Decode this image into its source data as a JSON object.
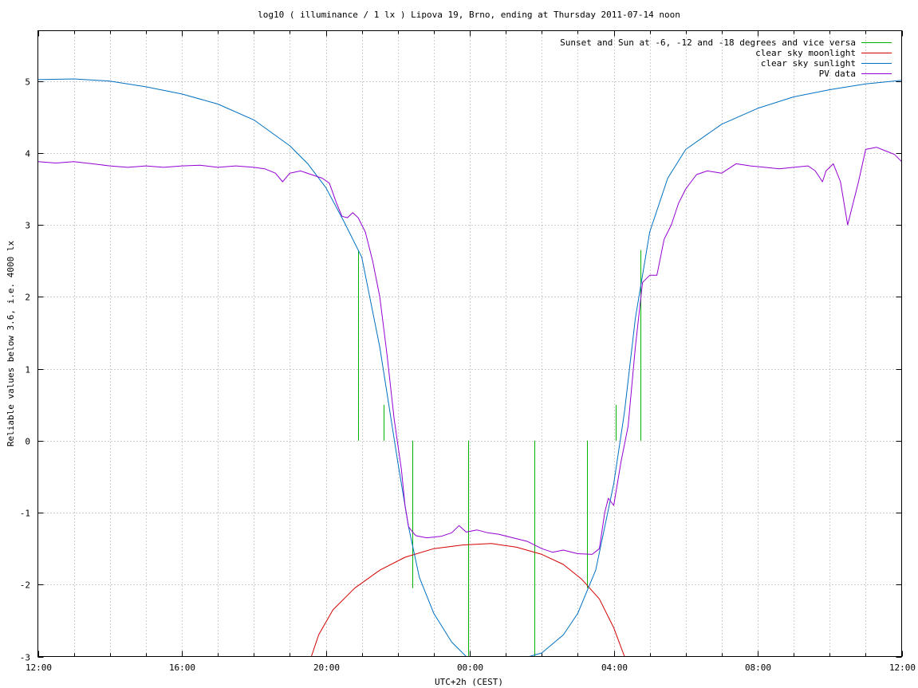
{
  "chart_data": {
    "type": "line",
    "title": "log10 ( illuminance / 1 lx ) Lipova 19, Brno, ending at Thursday 2011-07-14 noon",
    "xlabel": "UTC+2h (CEST)",
    "ylabel": "Reliable values below 3.6, i.e. 4000 lx",
    "x_unit": "hours since 12:00 (local) on the preceding day",
    "xlim": [
      0,
      24
    ],
    "ylim": [
      -3,
      5.7
    ],
    "x_ticks": [
      {
        "value": 0,
        "label": "12:00"
      },
      {
        "value": 4,
        "label": "16:00"
      },
      {
        "value": 8,
        "label": "20:00"
      },
      {
        "value": 12,
        "label": "00:00"
      },
      {
        "value": 16,
        "label": "04:00"
      },
      {
        "value": 20,
        "label": "08:00"
      },
      {
        "value": 24,
        "label": "12:00"
      }
    ],
    "y_ticks": [
      {
        "value": -3,
        "label": "-3"
      },
      {
        "value": -2,
        "label": "-2"
      },
      {
        "value": -1,
        "label": "-1"
      },
      {
        "value": 0,
        "label": "0"
      },
      {
        "value": 1,
        "label": "1"
      },
      {
        "value": 2,
        "label": "2"
      },
      {
        "value": 3,
        "label": "3"
      },
      {
        "value": 4,
        "label": "4"
      },
      {
        "value": 5,
        "label": "5"
      }
    ],
    "grid": true,
    "x_minor_grid_step": 1,
    "legend_position": "top-right",
    "series": [
      {
        "name": "Sunset and Sun at -6, -12 and -18 degrees and vice versa",
        "color": "#00b400",
        "style": "impulses",
        "base": 0,
        "points": [
          [
            8.9,
            2.65
          ],
          [
            9.6,
            0.5
          ],
          [
            10.4,
            -2.05
          ],
          [
            11.95,
            -3.0
          ],
          [
            13.8,
            -3.0
          ],
          [
            15.25,
            -2.05
          ],
          [
            16.05,
            0.5
          ],
          [
            16.75,
            2.65
          ]
        ]
      },
      {
        "name": "clear sky moonlight",
        "color": "#d40000",
        "style": "line",
        "points": [
          [
            7.6,
            -3.0
          ],
          [
            7.8,
            -2.7
          ],
          [
            8.2,
            -2.35
          ],
          [
            8.8,
            -2.05
          ],
          [
            9.5,
            -1.8
          ],
          [
            10.2,
            -1.62
          ],
          [
            11.0,
            -1.5
          ],
          [
            11.8,
            -1.45
          ],
          [
            12.6,
            -1.43
          ],
          [
            13.3,
            -1.48
          ],
          [
            14.0,
            -1.58
          ],
          [
            14.6,
            -1.72
          ],
          [
            15.1,
            -1.92
          ],
          [
            15.6,
            -2.2
          ],
          [
            16.0,
            -2.6
          ],
          [
            16.3,
            -3.0
          ]
        ]
      },
      {
        "name": "clear sky sunlight",
        "color": "#0070c0",
        "style": "line",
        "points": [
          [
            0,
            5.02
          ],
          [
            1,
            5.03
          ],
          [
            2,
            5.0
          ],
          [
            3,
            4.92
          ],
          [
            4,
            4.82
          ],
          [
            5,
            4.68
          ],
          [
            6,
            4.46
          ],
          [
            7,
            4.1
          ],
          [
            7.5,
            3.85
          ],
          [
            8,
            3.52
          ],
          [
            8.5,
            3.05
          ],
          [
            9,
            2.55
          ],
          [
            9.5,
            1.3
          ],
          [
            10,
            -0.3
          ],
          [
            10.3,
            -1.2
          ],
          [
            10.6,
            -1.9
          ],
          [
            11,
            -2.4
          ],
          [
            11.5,
            -2.8
          ],
          [
            12,
            -3.05
          ],
          [
            13.3,
            -3.05
          ],
          [
            14,
            -2.95
          ],
          [
            14.6,
            -2.7
          ],
          [
            15,
            -2.4
          ],
          [
            15.5,
            -1.8
          ],
          [
            16,
            -0.6
          ],
          [
            16.3,
            0.4
          ],
          [
            16.6,
            1.7
          ],
          [
            17,
            2.9
          ],
          [
            17.5,
            3.65
          ],
          [
            18,
            4.05
          ],
          [
            19,
            4.4
          ],
          [
            20,
            4.62
          ],
          [
            21,
            4.78
          ],
          [
            22,
            4.88
          ],
          [
            23,
            4.96
          ],
          [
            24,
            5.01
          ]
        ]
      },
      {
        "name": "PV data",
        "color": "#9400d3",
        "style": "line",
        "points": [
          [
            0,
            3.88
          ],
          [
            0.5,
            3.86
          ],
          [
            1,
            3.88
          ],
          [
            1.5,
            3.85
          ],
          [
            2,
            3.82
          ],
          [
            2.5,
            3.8
          ],
          [
            3,
            3.82
          ],
          [
            3.5,
            3.8
          ],
          [
            4,
            3.82
          ],
          [
            4.5,
            3.83
          ],
          [
            5,
            3.8
          ],
          [
            5.5,
            3.82
          ],
          [
            6,
            3.8
          ],
          [
            6.3,
            3.78
          ],
          [
            6.6,
            3.72
          ],
          [
            6.8,
            3.6
          ],
          [
            7.0,
            3.72
          ],
          [
            7.3,
            3.75
          ],
          [
            7.6,
            3.7
          ],
          [
            7.9,
            3.65
          ],
          [
            8.1,
            3.58
          ],
          [
            8.3,
            3.3
          ],
          [
            8.45,
            3.12
          ],
          [
            8.6,
            3.1
          ],
          [
            8.75,
            3.17
          ],
          [
            8.9,
            3.1
          ],
          [
            9.1,
            2.9
          ],
          [
            9.3,
            2.5
          ],
          [
            9.5,
            2.0
          ],
          [
            9.7,
            1.2
          ],
          [
            9.9,
            0.3
          ],
          [
            10.1,
            -0.4
          ],
          [
            10.2,
            -0.9
          ],
          [
            10.3,
            -1.2
          ],
          [
            10.5,
            -1.32
          ],
          [
            10.8,
            -1.35
          ],
          [
            11.2,
            -1.33
          ],
          [
            11.5,
            -1.28
          ],
          [
            11.7,
            -1.18
          ],
          [
            11.9,
            -1.27
          ],
          [
            12.2,
            -1.24
          ],
          [
            12.5,
            -1.28
          ],
          [
            12.8,
            -1.3
          ],
          [
            13.2,
            -1.35
          ],
          [
            13.6,
            -1.4
          ],
          [
            14.0,
            -1.5
          ],
          [
            14.3,
            -1.55
          ],
          [
            14.6,
            -1.52
          ],
          [
            15.0,
            -1.57
          ],
          [
            15.4,
            -1.58
          ],
          [
            15.6,
            -1.5
          ],
          [
            15.75,
            -1.0
          ],
          [
            15.85,
            -0.8
          ],
          [
            16.0,
            -0.9
          ],
          [
            16.2,
            -0.3
          ],
          [
            16.4,
            0.2
          ],
          [
            16.6,
            1.3
          ],
          [
            16.8,
            2.2
          ],
          [
            17.0,
            2.3
          ],
          [
            17.2,
            2.3
          ],
          [
            17.4,
            2.8
          ],
          [
            17.6,
            3.0
          ],
          [
            17.8,
            3.3
          ],
          [
            18.0,
            3.5
          ],
          [
            18.3,
            3.7
          ],
          [
            18.6,
            3.75
          ],
          [
            19.0,
            3.72
          ],
          [
            19.4,
            3.85
          ],
          [
            19.8,
            3.82
          ],
          [
            20.2,
            3.8
          ],
          [
            20.6,
            3.78
          ],
          [
            21.0,
            3.8
          ],
          [
            21.4,
            3.82
          ],
          [
            21.6,
            3.75
          ],
          [
            21.8,
            3.6
          ],
          [
            21.9,
            3.75
          ],
          [
            22.1,
            3.85
          ],
          [
            22.3,
            3.6
          ],
          [
            22.5,
            3.0
          ],
          [
            22.6,
            3.2
          ],
          [
            22.8,
            3.6
          ],
          [
            23.0,
            4.05
          ],
          [
            23.3,
            4.08
          ],
          [
            23.6,
            4.02
          ],
          [
            23.8,
            3.98
          ],
          [
            24.0,
            3.88
          ]
        ]
      }
    ]
  }
}
